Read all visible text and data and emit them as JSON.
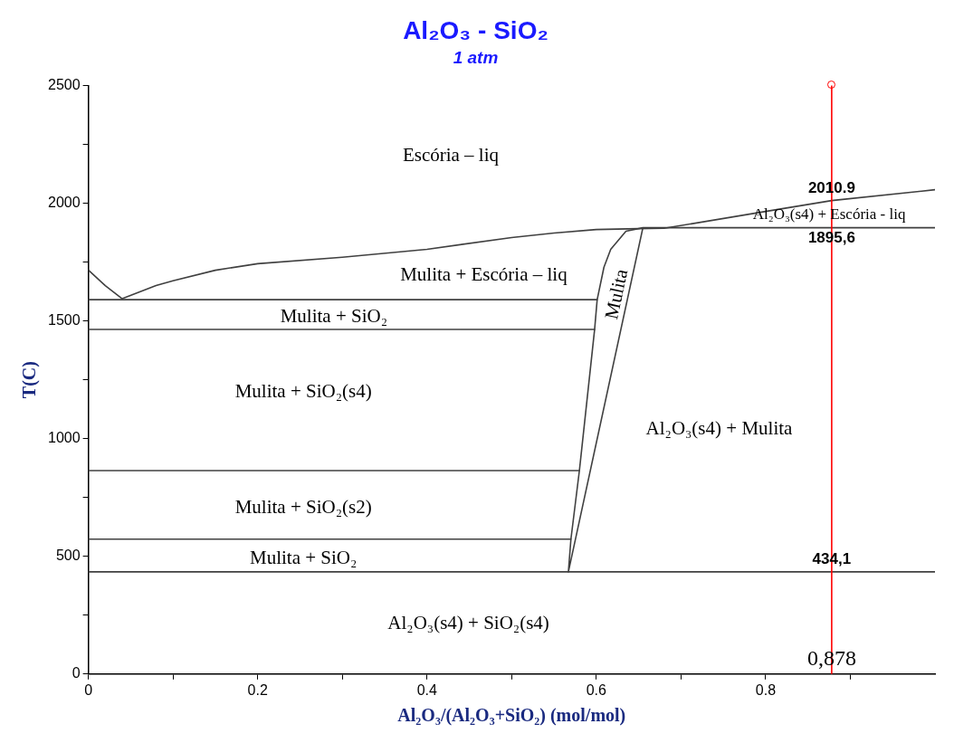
{
  "chart_data": {
    "type": "line",
    "title": "Al₂O₃ - SiO₂",
    "subtitle": "1 atm",
    "xlabel": "Al₂O₃/(Al₂O₃+SiO₂) (mol/mol)",
    "ylabel": "T(C)",
    "xlim": [
      0,
      1
    ],
    "xticks": [
      0,
      {
        "value": 0.1,
        "label": null
      },
      0.2,
      {
        "value": 0.3,
        "label": null
      },
      0.4,
      {
        "value": 0.5,
        "label": null
      },
      0.6,
      {
        "value": 0.7,
        "label": null
      },
      0.8,
      {
        "value": 0.9,
        "label": null
      }
    ],
    "ylim": [
      0,
      2500
    ],
    "yticks": [
      0,
      {
        "value": 250,
        "label": null
      },
      500,
      {
        "value": 750,
        "label": null
      },
      1000,
      {
        "value": 1250,
        "label": null
      },
      1500,
      {
        "value": 1750,
        "label": null
      },
      2000,
      {
        "value": 2250,
        "label": null
      },
      2500
    ],
    "marker": "none",
    "line_style": "solid",
    "series": [
      {
        "color": "#404040",
        "x": [
          0,
          0.02,
          0.04,
          0.08,
          0.1,
          0.15,
          0.2,
          0.3,
          0.4,
          0.5,
          0.55,
          0.6,
          0.65,
          0.68,
          0.8,
          0.878,
          1
        ],
        "values": [
          1716,
          1650,
          1594,
          1650,
          1670,
          1715,
          1743,
          1770,
          1804,
          1854,
          1873,
          1888,
          1892,
          1893,
          1965,
          2010.9,
          2057
        ]
      },
      {
        "color": "#404040",
        "x": [
          1,
          0.655,
          0.567,
          0.57,
          0.58,
          0.598,
          0.601,
          0.609,
          0.617,
          0.635,
          0.655
        ],
        "values": [
          1895.6,
          1895.6,
          434.1,
          573,
          864,
          1464,
          1590,
          1728,
          1804,
          1881,
          1895.6
        ]
      },
      {
        "color": "#404040",
        "x": [
          0,
          0.601
        ],
        "values": [
          1590,
          1590
        ]
      },
      {
        "color": "#404040",
        "x": [
          0,
          0.598
        ],
        "values": [
          1464,
          1464
        ]
      },
      {
        "color": "#404040",
        "x": [
          0,
          0.58
        ],
        "values": [
          864,
          864
        ]
      },
      {
        "color": "#404040",
        "x": [
          0,
          0.57
        ],
        "values": [
          573,
          573
        ]
      },
      {
        "color": "#404040",
        "x": [
          0,
          1
        ],
        "values": [
          434.1,
          434.1
        ]
      }
    ],
    "ref_lines": [
      {
        "axis": "x",
        "value": 0.878,
        "label": "0,878",
        "color": "#ff0000"
      }
    ],
    "annotations": [
      "Escória – liq",
      "Mulita + Escória – liq",
      "Mulita + SiO₂",
      "Mulita + SiO₂(s4)",
      "Mulita",
      "Al₂O₃(s4) + Mulita",
      "Mulita + SiO₂(s2)",
      "Mulita + SiO₂",
      "Al₂O₃(s4) + SiO₂(s4)",
      {
        "text": "2010.9",
        "y": 2010.9
      },
      "Al₂O₃(s4) + Escória - liq",
      {
        "text": "1895,6",
        "y": 1895.6
      },
      {
        "text": "434,1",
        "y": 434.1
      }
    ]
  }
}
